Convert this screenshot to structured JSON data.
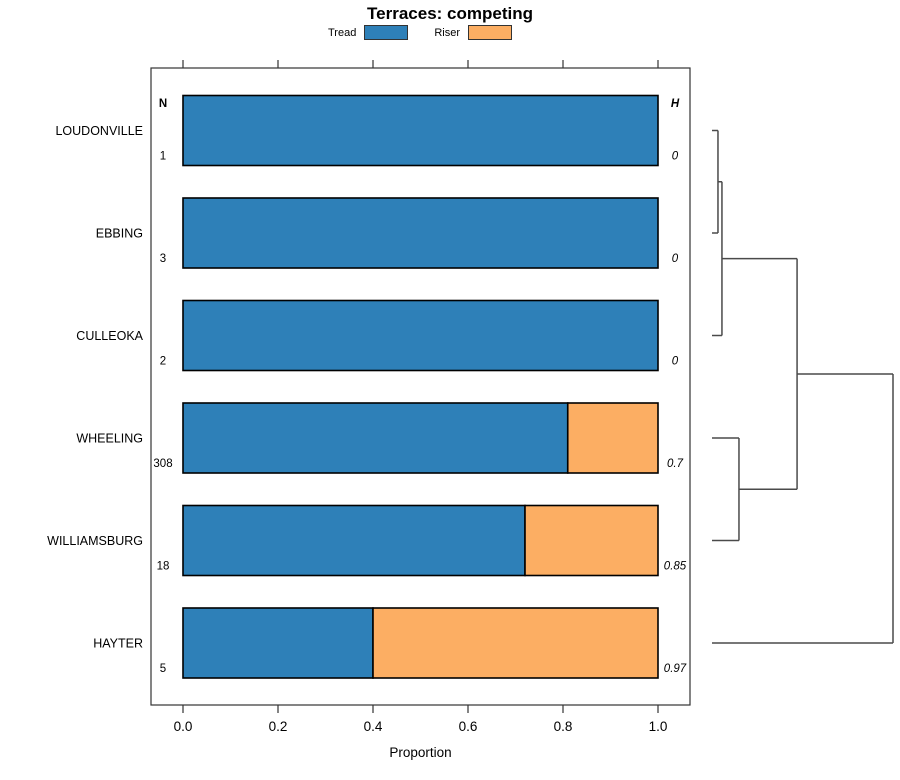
{
  "title": "Terraces: competing",
  "legend": {
    "position": "top",
    "items": [
      {
        "label": "Tread",
        "color": "#2E80B8"
      },
      {
        "label": "Riser",
        "color": "#FCAE63"
      }
    ]
  },
  "chart_data": {
    "type": "bar",
    "orientation": "horizontal",
    "stacked": true,
    "title": "Terraces: competing",
    "xlabel": "Proportion",
    "xlim": [
      0.0,
      1.0
    ],
    "xticks": [
      0.0,
      0.2,
      0.4,
      0.6,
      0.8,
      1.0
    ],
    "grid": false,
    "categories": [
      "LOUDONVILLE",
      "EBBING",
      "CULLEOKA",
      "WHEELING",
      "WILLIAMSBURG",
      "HAYTER"
    ],
    "series": [
      {
        "name": "Tread",
        "color": "#2E80B8",
        "values": [
          1.0,
          1.0,
          1.0,
          0.81,
          0.72,
          0.4
        ]
      },
      {
        "name": "Riser",
        "color": "#FCAE63",
        "values": [
          0.0,
          0.0,
          0.0,
          0.19,
          0.28,
          0.6
        ]
      }
    ],
    "n_column": {
      "header": "N",
      "values": [
        "1",
        "3",
        "2",
        "308",
        "18",
        "5"
      ]
    },
    "h_column": {
      "header": "H",
      "values": [
        "0",
        "0",
        "0",
        "0.7",
        "0.85",
        "0.97"
      ]
    },
    "dendrogram": {
      "side": "right",
      "leaves": [
        "LOUDONVILLE",
        "EBBING",
        "CULLEOKA",
        "WHEELING",
        "WILLIAMSBURG",
        "HAYTER"
      ],
      "merges": [
        {
          "pair": [
            0,
            1
          ],
          "height": 0.033
        },
        {
          "pair": [
            6,
            2
          ],
          "height": 0.055
        },
        {
          "pair": [
            3,
            4
          ],
          "height": 0.149
        },
        {
          "pair": [
            7,
            8
          ],
          "height": 0.47
        },
        {
          "pair": [
            9,
            5
          ],
          "height": 1.0
        }
      ],
      "max_height": 1.0
    },
    "style": {
      "bar_stroke": "#000000",
      "box_stroke": "#333333",
      "dendro_stroke": "#4a4a4a",
      "text_color": "#000000"
    }
  }
}
